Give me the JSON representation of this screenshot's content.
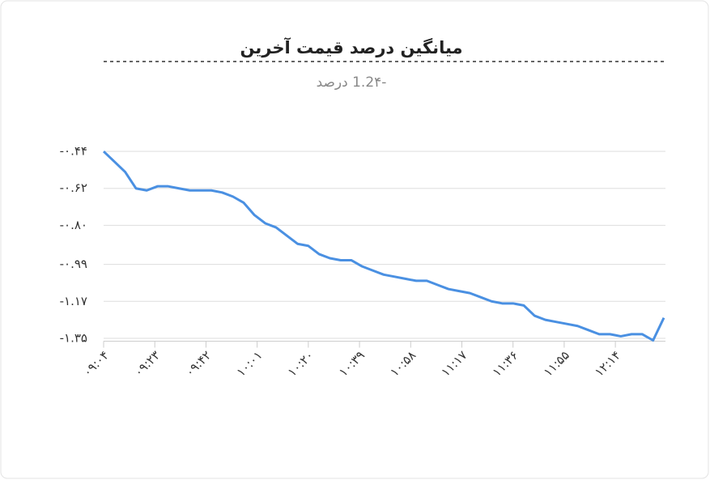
{
  "chart_data": {
    "type": "line",
    "title": "میانگین درصد قیمت آخرین",
    "subtitle": "-1.2۴ درصد",
    "x": [
      544,
      548,
      552,
      556,
      560,
      564,
      568,
      572,
      576,
      580,
      584,
      588,
      592,
      596,
      600,
      604,
      608,
      612,
      616,
      620,
      624,
      628,
      632,
      636,
      640,
      644,
      648,
      652,
      656,
      660,
      664,
      668,
      672,
      676,
      680,
      684,
      688,
      692,
      696,
      700,
      704,
      708,
      712,
      716,
      720,
      724,
      728,
      732,
      736,
      740,
      744,
      748,
      752
    ],
    "series": [
      {
        "color": "#4a90e2",
        "values": [
          -0.44,
          -0.49,
          -0.54,
          -0.62,
          -0.63,
          -0.61,
          -0.61,
          -0.62,
          -0.63,
          -0.63,
          -0.63,
          -0.64,
          -0.66,
          -0.69,
          -0.75,
          -0.79,
          -0.81,
          -0.85,
          -0.89,
          -0.9,
          -0.94,
          -0.96,
          -0.97,
          -0.97,
          -1.0,
          -1.02,
          -1.04,
          -1.05,
          -1.06,
          -1.07,
          -1.07,
          -1.09,
          -1.11,
          -1.12,
          -1.13,
          -1.15,
          -1.17,
          -1.18,
          -1.18,
          -1.19,
          -1.24,
          -1.26,
          -1.27,
          -1.28,
          -1.29,
          -1.31,
          -1.33,
          -1.33,
          -1.34,
          -1.33,
          -1.33,
          -1.36,
          -1.25
        ]
      }
    ],
    "xlim": [
      544,
      752
    ],
    "xticks": [
      {
        "value": 544,
        "label": "۰۹:۰۴"
      },
      {
        "value": 563,
        "label": "۰۹:۲۳"
      },
      {
        "value": 582,
        "label": "۰۹:۴۲"
      },
      {
        "value": 601,
        "label": "۱۰:۰۱"
      },
      {
        "value": 620,
        "label": "۱۰:۲۰"
      },
      {
        "value": 639,
        "label": "۱۰:۳۹"
      },
      {
        "value": 658,
        "label": "۱۰:۵۸"
      },
      {
        "value": 677,
        "label": "۱۱:۱۷"
      },
      {
        "value": 696,
        "label": "۱۱:۳۶"
      },
      {
        "value": 715,
        "label": "۱۱:۵۵"
      },
      {
        "value": 734,
        "label": "۱۲:۱۴"
      }
    ],
    "ylim": [
      -1.36,
      -0.43
    ],
    "yticks": [
      {
        "value": -0.44,
        "label": "-۰.۴۴"
      },
      {
        "value": -0.62,
        "label": "-۰.۶۲"
      },
      {
        "value": -0.8,
        "label": "-۰.۸۰"
      },
      {
        "value": -0.99,
        "label": "-۰.۹۹"
      },
      {
        "value": -1.17,
        "label": "-۱.۱۷"
      },
      {
        "value": -1.35,
        "label": "-۱.۳۵"
      }
    ],
    "grid": true
  }
}
